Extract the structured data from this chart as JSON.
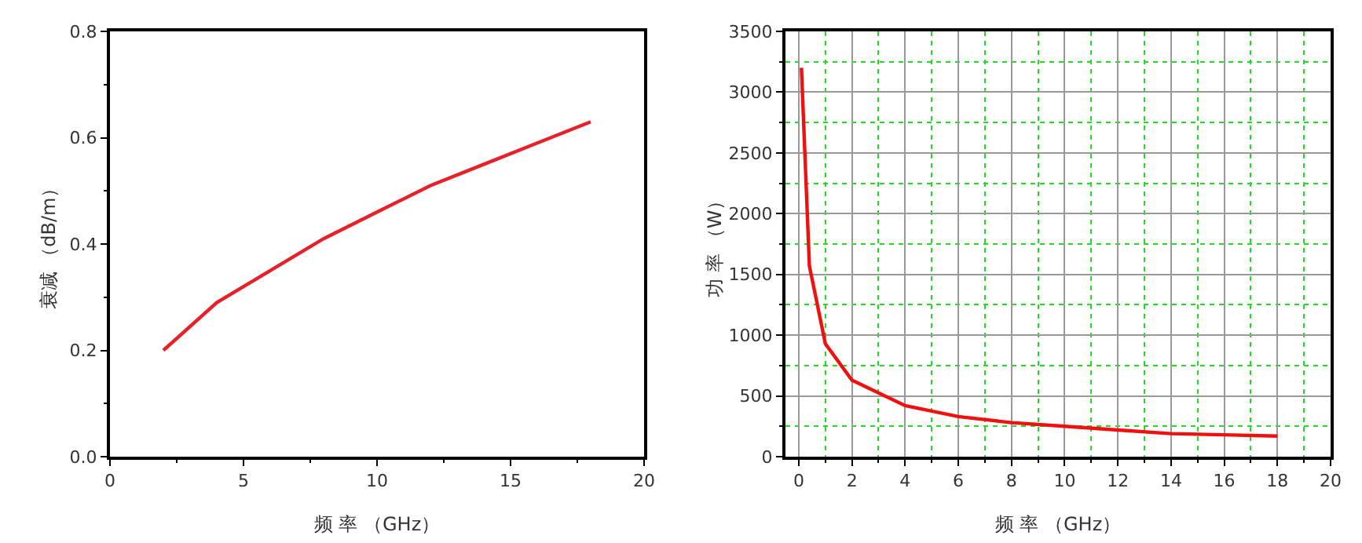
{
  "chart_data": [
    {
      "type": "line",
      "xlabel": "频 率 （GHz）",
      "ylabel": "衰减 （dB/m）",
      "x": [
        2,
        4,
        6,
        8,
        10,
        12,
        14,
        16,
        18
      ],
      "series": [
        {
          "color": "#e8202a",
          "values": [
            0.2,
            0.29,
            0.35,
            0.41,
            0.46,
            0.51,
            0.55,
            0.59,
            0.63
          ]
        }
      ],
      "xlim": [
        0,
        20
      ],
      "xticks": [
        0,
        {
          "value": 2.5,
          "label": null
        },
        5,
        {
          "value": 7.5,
          "label": null
        },
        10,
        {
          "value": 12.5,
          "label": null
        },
        15,
        {
          "value": 17.5,
          "label": null
        },
        20
      ],
      "ylim": [
        0,
        0.8
      ],
      "yticks": [
        {
          "value": 0,
          "label": "0.0"
        },
        {
          "value": 0.1,
          "label": null
        },
        0.2,
        {
          "value": 0.3,
          "label": null
        },
        0.4,
        {
          "value": 0.5,
          "label": null
        },
        0.6,
        {
          "value": 0.7,
          "label": null
        },
        0.8
      ],
      "grid": false,
      "marker": "none",
      "line_style": "solid"
    },
    {
      "type": "line",
      "xlabel": "频 率 （GHz）",
      "ylabel": "功 率 （W）",
      "x": [
        0.1,
        0.4,
        1,
        2,
        4,
        6,
        8,
        10,
        12,
        14,
        16,
        18
      ],
      "series": [
        {
          "color": "#f01010",
          "values": [
            3200,
            1570,
            930,
            630,
            420,
            330,
            280,
            250,
            220,
            190,
            180,
            170
          ]
        }
      ],
      "xlim": [
        -0.5,
        20
      ],
      "xticks": [
        0,
        {
          "value": 1,
          "label": null
        },
        2,
        {
          "value": 3,
          "label": null
        },
        4,
        {
          "value": 5,
          "label": null
        },
        6,
        {
          "value": 7,
          "label": null
        },
        8,
        {
          "value": 9,
          "label": null
        },
        10,
        {
          "value": 11,
          "label": null
        },
        12,
        {
          "value": 13,
          "label": null
        },
        14,
        {
          "value": 15,
          "label": null
        },
        16,
        {
          "value": 17,
          "label": null
        },
        18,
        {
          "value": 19,
          "label": null
        },
        20
      ],
      "ylim": [
        0,
        3500
      ],
      "yticks": [
        0,
        {
          "value": 250,
          "label": null
        },
        500,
        {
          "value": 750,
          "label": null
        },
        1000,
        {
          "value": 1250,
          "label": null
        },
        1500,
        {
          "value": 1750,
          "label": null
        },
        2000,
        {
          "value": 2250,
          "label": null
        },
        2500,
        {
          "value": 2750,
          "label": null
        },
        3000,
        {
          "value": 3250,
          "label": null
        },
        3500
      ],
      "grid": true,
      "marker": "none",
      "line_style": "solid"
    }
  ]
}
